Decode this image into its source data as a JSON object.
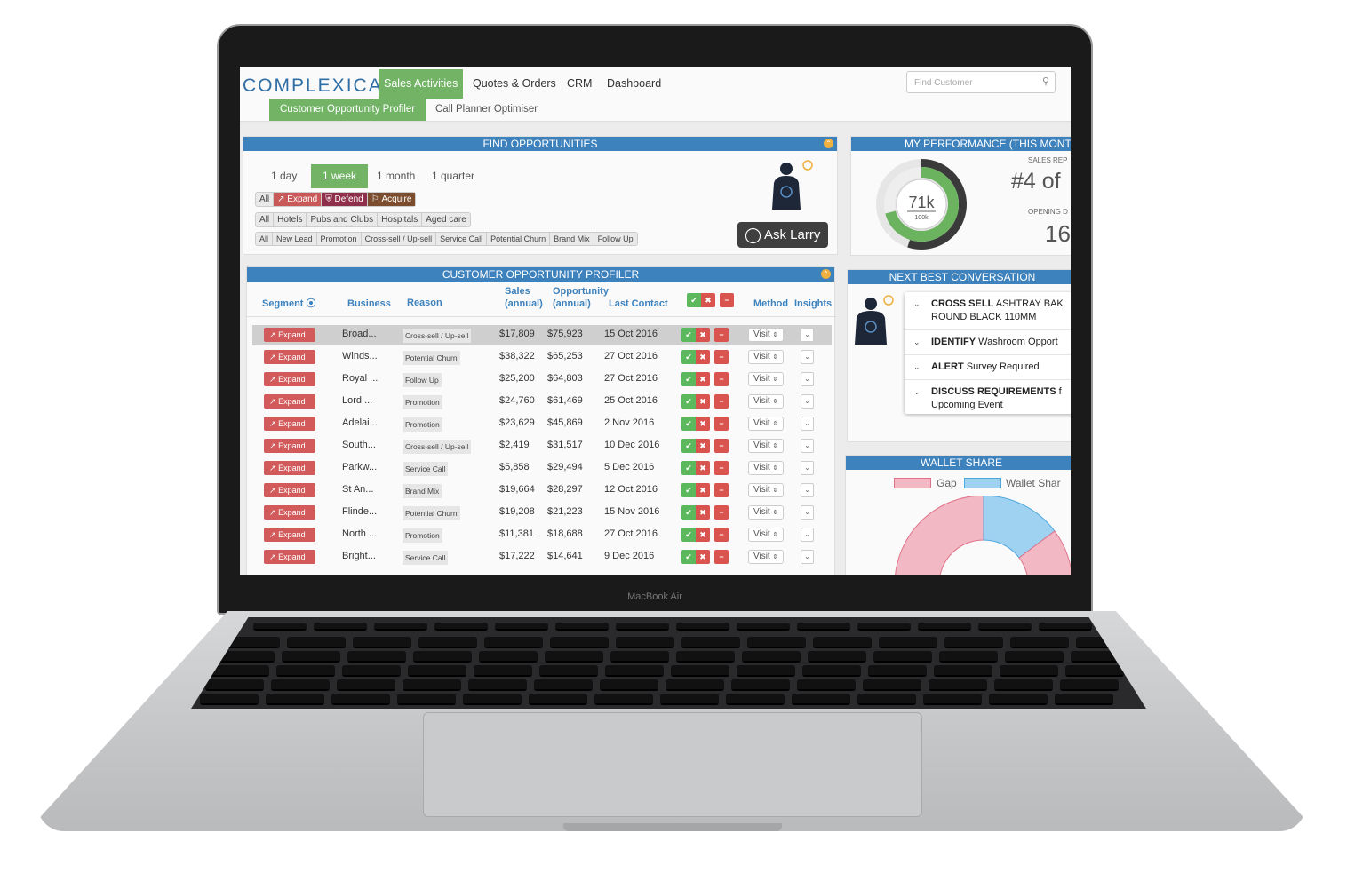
{
  "device_label": "MacBook Air",
  "app": {
    "logo": "COMPLEXICA",
    "nav": [
      {
        "label": "Sales Activities",
        "active": true
      },
      {
        "label": "Quotes & Orders"
      },
      {
        "label": "CRM"
      },
      {
        "label": "Dashboard"
      }
    ],
    "subnav": [
      {
        "label": "Customer Opportunity Profiler",
        "active": true
      },
      {
        "label": "Call Planner Optimiser"
      }
    ],
    "search": {
      "placeholder": "Find Customer",
      "icon": "search-icon"
    },
    "accent": "#72b366",
    "panel_header_color": "#3d82bd"
  },
  "find": {
    "title": "FIND OPPORTUNITIES",
    "periods": [
      {
        "label": "1 day"
      },
      {
        "label": "1 week",
        "active": true
      },
      {
        "label": "1 month"
      },
      {
        "label": "1 quarter"
      }
    ],
    "segments": [
      {
        "label": "All"
      },
      {
        "label": "Expand",
        "color": "#c95858"
      },
      {
        "label": "Defend",
        "color": "#8e2f4b"
      },
      {
        "label": "Acquire",
        "color": "#7b4d2e"
      }
    ],
    "business_types": [
      "All",
      "Hotels",
      "Pubs and Clubs",
      "Hospitals",
      "Aged care"
    ],
    "reasons": [
      "All",
      "New Lead",
      "Promotion",
      "Cross-sell / Up-sell",
      "Service Call",
      "Potential Churn",
      "Brand Mix",
      "Follow Up"
    ],
    "ask_button": "Ask Larry"
  },
  "profiler": {
    "title": "CUSTOMER OPPORTUNITY PROFILER",
    "headers": {
      "segment": "Segment",
      "business": "Business",
      "reason": "Reason",
      "sales": [
        "Sales",
        "(annual)"
      ],
      "opportunity": [
        "Opportunity",
        "(annual)"
      ],
      "last_contact": "Last Contact",
      "method": "Method",
      "insights": "Insights"
    },
    "rows": [
      {
        "segment": "Expand",
        "business": "Broad...",
        "reason": "Cross-sell / Up-sell",
        "sales": "$17,809",
        "opportunity": "$75,923",
        "last_contact": "15 Oct 2016",
        "method": "Visit",
        "selected": true
      },
      {
        "segment": "Expand",
        "business": "Winds...",
        "reason": "Potential Churn",
        "sales": "$38,322",
        "opportunity": "$65,253",
        "last_contact": "27 Oct 2016",
        "method": "Visit"
      },
      {
        "segment": "Expand",
        "business": "Royal ...",
        "reason": "Follow Up",
        "sales": "$25,200",
        "opportunity": "$64,803",
        "last_contact": "27 Oct 2016",
        "method": "Visit"
      },
      {
        "segment": "Expand",
        "business": "Lord ...",
        "reason": "Promotion",
        "sales": "$24,760",
        "opportunity": "$61,469",
        "last_contact": "25 Oct 2016",
        "method": "Visit"
      },
      {
        "segment": "Expand",
        "business": "Adelai...",
        "reason": "Promotion",
        "sales": "$23,629",
        "opportunity": "$45,869",
        "last_contact": "2 Nov 2016",
        "method": "Visit"
      },
      {
        "segment": "Expand",
        "business": "South...",
        "reason": "Cross-sell / Up-sell",
        "sales": "$2,419",
        "opportunity": "$31,517",
        "last_contact": "10 Dec 2016",
        "method": "Visit"
      },
      {
        "segment": "Expand",
        "business": "Parkw...",
        "reason": "Service Call",
        "sales": "$5,858",
        "opportunity": "$29,494",
        "last_contact": "5 Dec 2016",
        "method": "Visit"
      },
      {
        "segment": "Expand",
        "business": "St An...",
        "reason": "Brand Mix",
        "sales": "$19,664",
        "opportunity": "$28,297",
        "last_contact": "12 Oct 2016",
        "method": "Visit"
      },
      {
        "segment": "Expand",
        "business": "Flinde...",
        "reason": "Potential Churn",
        "sales": "$19,208",
        "opportunity": "$21,223",
        "last_contact": "15 Nov 2016",
        "method": "Visit"
      },
      {
        "segment": "Expand",
        "business": "North ...",
        "reason": "Promotion",
        "sales": "$11,381",
        "opportunity": "$18,688",
        "last_contact": "27 Oct 2016",
        "method": "Visit"
      },
      {
        "segment": "Expand",
        "business": "Bright...",
        "reason": "Service Call",
        "sales": "$17,222",
        "opportunity": "$14,641",
        "last_contact": "9 Dec 2016",
        "method": "Visit"
      }
    ]
  },
  "performance": {
    "title": "MY PERFORMANCE (THIS MONTH",
    "gauge_value": "71k",
    "gauge_target": "100k",
    "progress": 0.71,
    "rank_label": "SALES REP",
    "rank": "#4 of",
    "opening_label": "OPENING D",
    "opening_value": "16"
  },
  "nbc": {
    "title": "NEXT BEST CONVERSATION",
    "items": [
      {
        "bold": "CROSS SELL",
        "text": " ASHTRAY BAK",
        "line2": "ROUND BLACK 110MM"
      },
      {
        "bold": "IDENTIFY",
        "text": " Washroom Opport"
      },
      {
        "bold": "ALERT",
        "text": " Survey Required"
      },
      {
        "bold": "DISCUSS REQUIREMENTS",
        "text": " f",
        "line2": "Upcoming Event"
      }
    ]
  },
  "wallet": {
    "title": "WALLET SHARE",
    "legend": [
      {
        "label": "Gap",
        "color": "#f2b8c4"
      },
      {
        "label": "Wallet Shar",
        "color": "#9fd2f1"
      }
    ]
  }
}
